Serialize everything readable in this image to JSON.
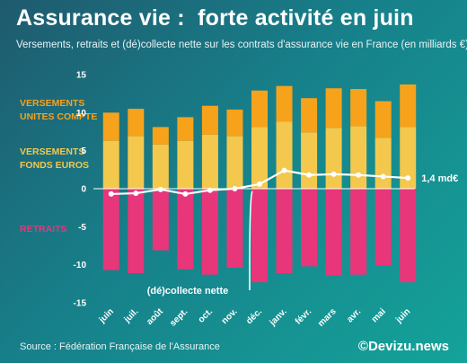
{
  "header": {
    "title": "Assurance vie :  forte activité en juin",
    "subtitle": "Versements, retraits et (dé)collecte nette sur les contrats d'assurance vie en France (en milliards €)"
  },
  "legend": {
    "uc_line1": "VERSEMENTS",
    "uc_line2": "UNITES COMPTE",
    "fe_line1": "VERSEMENTS",
    "fe_line2": "FONDS EUROS",
    "retraits": "RETRAITS"
  },
  "footer": {
    "source": "Source : Fédération Française de l'Assurance",
    "brand": "©Devizu.news"
  },
  "colors": {
    "unites_compte": "#f7a21b",
    "fonds_euros": "#f3c84d",
    "retraits": "#e8367a",
    "collecte_line": "#ffffff"
  },
  "chart_data": {
    "type": "bar",
    "categories": [
      "juin",
      "juil.",
      "août",
      "sept.",
      "oct.",
      "nov.",
      "déc.",
      "janv.",
      "févr.",
      "mars",
      "avr.",
      "mai",
      "juin"
    ],
    "ylim": [
      -15,
      15
    ],
    "yticks": [
      15,
      10,
      5,
      0,
      -5,
      -10,
      -15
    ],
    "series": [
      {
        "name": "VERSEMENTS FONDS EUROS",
        "values": [
          6.3,
          6.9,
          5.8,
          6.3,
          7.1,
          6.9,
          8.1,
          8.8,
          7.4,
          8.0,
          8.2,
          6.7,
          8.1
        ]
      },
      {
        "name": "VERSEMENTS UNITES COMPTE",
        "values": [
          3.7,
          3.6,
          2.3,
          3.1,
          3.8,
          3.5,
          4.8,
          4.7,
          4.5,
          5.2,
          4.9,
          4.8,
          5.6
        ]
      },
      {
        "name": "RETRAITS",
        "values": [
          -10.7,
          -11.1,
          -8.1,
          -10.6,
          -11.3,
          -10.4,
          -12.3,
          -11.1,
          -10.2,
          -11.4,
          -11.3,
          -10.1,
          -12.3
        ]
      },
      {
        "name": "(dé)collecte nette",
        "values": [
          -0.7,
          -0.6,
          -0.1,
          -0.7,
          -0.2,
          0.0,
          0.6,
          2.4,
          1.8,
          1.9,
          1.8,
          1.6,
          1.4
        ]
      }
    ],
    "annotations": {
      "last_value": "1,4 md€",
      "line_label": "(dé)collecte nette"
    },
    "grid": false
  }
}
